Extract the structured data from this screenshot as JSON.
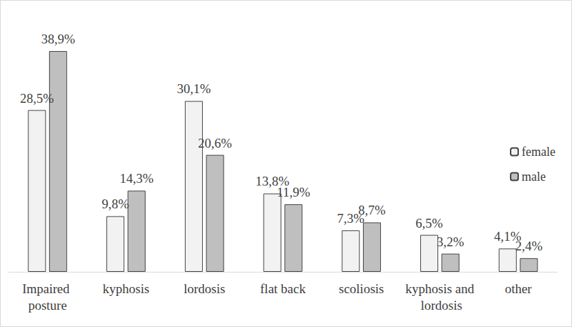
{
  "chart_data": {
    "type": "bar",
    "categories": [
      "Impaired posture",
      "kyphosis",
      "lordosis",
      "flat back",
      "scoliosis",
      "kyphosis and lordosis",
      "other"
    ],
    "series": [
      {
        "name": "female",
        "color": "#f2f2f2",
        "values": [
          28.5,
          9.8,
          30.1,
          13.8,
          7.3,
          6.5,
          4.1
        ],
        "value_labels": [
          "28,5%",
          "9,8%",
          "30,1%",
          "13,8%",
          "7,3%",
          "6,5%",
          "4,1%"
        ]
      },
      {
        "name": "male",
        "color": "#bfbfbf",
        "values": [
          38.9,
          14.3,
          20.6,
          11.9,
          8.7,
          3.2,
          2.4
        ],
        "value_labels": [
          "38,9%",
          "14,3%",
          "20,6%",
          "11,9%",
          "8,7%",
          "3,2%",
          "2,4%"
        ]
      }
    ],
    "ylim": [
      0,
      40
    ],
    "legend": "right",
    "data_labels": true,
    "tick_labels": "x",
    "grid": false
  }
}
